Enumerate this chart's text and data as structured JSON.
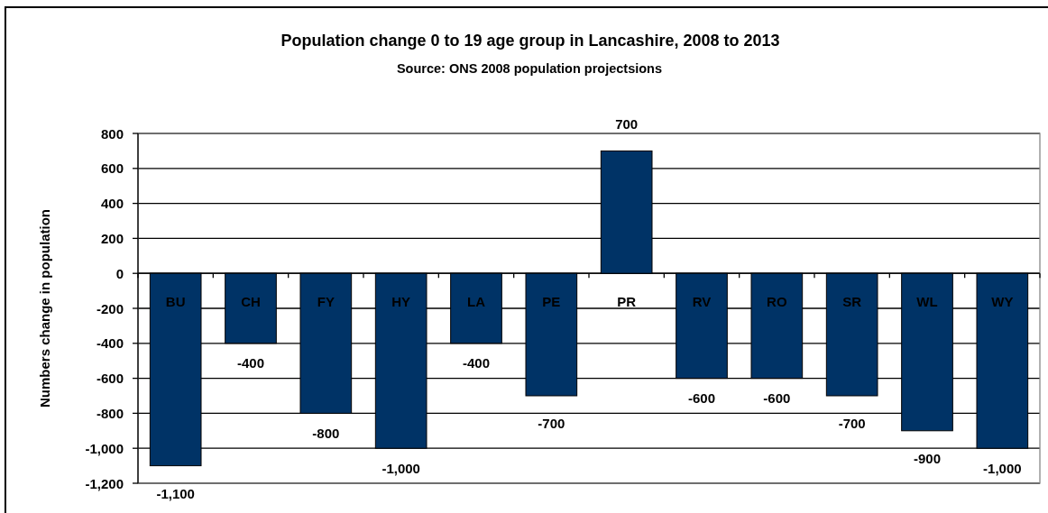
{
  "chart_data": {
    "type": "bar",
    "title": "Population change 0 to 19 age group in Lancashire, 2008 to 2013",
    "subtitle": "Source: ONS 2008 population projectsions",
    "ylabel": "Numbers change in population",
    "categories": [
      "BU",
      "CH",
      "FY",
      "HY",
      "LA",
      "PE",
      "PR",
      "RV",
      "RO",
      "SR",
      "WL",
      "WY"
    ],
    "values": [
      -1100,
      -400,
      -800,
      -1000,
      -400,
      -700,
      700,
      -600,
      -600,
      -700,
      -900,
      -1000
    ],
    "value_labels": [
      "-1,100",
      "-400",
      "-800",
      "-1,000",
      "-400",
      "-700",
      "700",
      "-600",
      "-600",
      "-700",
      "-900",
      "-1,000"
    ],
    "color": "#003366",
    "ylim": [
      -1200,
      800
    ],
    "yticks": [
      {
        "value": -1200,
        "label": "-1,200"
      },
      {
        "value": -1000,
        "label": "-1,000"
      },
      -800,
      -600,
      -400,
      -200,
      0,
      200,
      400,
      600,
      800
    ],
    "grid": "y"
  }
}
